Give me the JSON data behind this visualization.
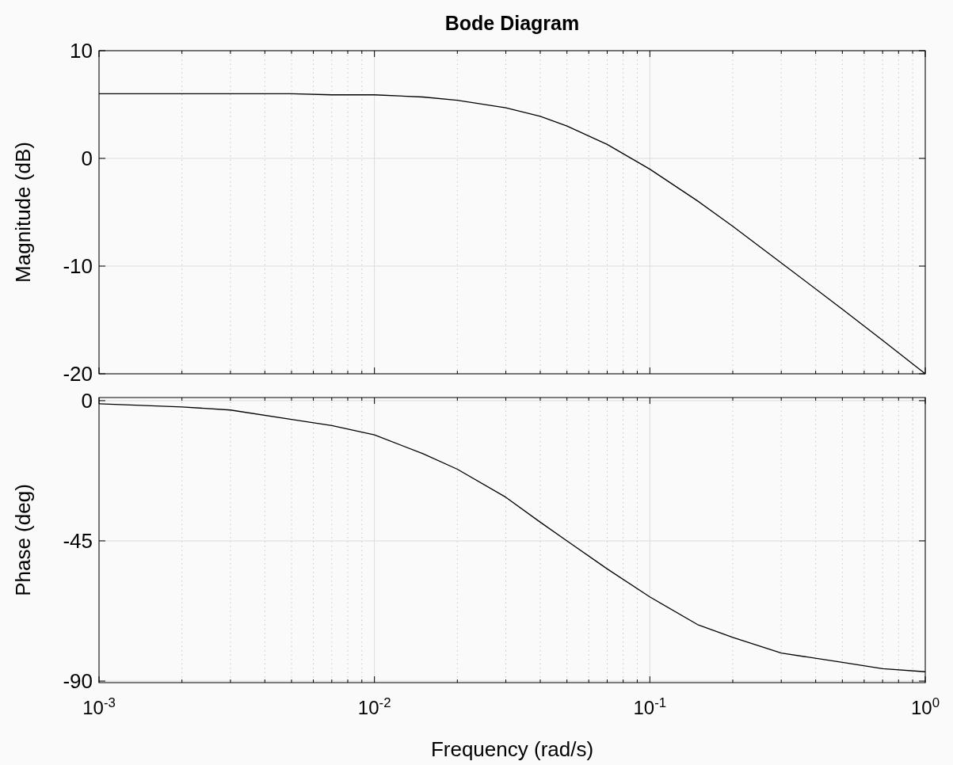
{
  "chart_data": [
    {
      "type": "line",
      "title": "Bode Diagram",
      "ylabel": "Magnitude (dB)",
      "log": "x",
      "grid": true,
      "tick_labels": "y",
      "xlim": [
        0.001,
        1
      ],
      "ylim": [
        -20,
        10
      ],
      "yticks": [
        -20,
        -10,
        0,
        10
      ],
      "xticks": [
        {
          "value": 0.001,
          "label": null
        },
        {
          "value": 0.01,
          "label": null
        },
        {
          "value": 0.1,
          "label": null
        },
        {
          "value": 1,
          "label": null
        }
      ],
      "series": [
        {
          "color": "#000000",
          "x": [
            0.001,
            0.002,
            0.003,
            0.005,
            0.007,
            0.01,
            0.015,
            0.02,
            0.03,
            0.04,
            0.05,
            0.07,
            0.1,
            0.15,
            0.2,
            0.3,
            0.5,
            0.7,
            1
          ],
          "values": [
            6.0,
            6.0,
            6.0,
            6.0,
            5.9,
            5.9,
            5.7,
            5.4,
            4.7,
            3.9,
            3.0,
            1.3,
            -1.0,
            -4.0,
            -6.3,
            -9.7,
            -14.0,
            -16.9,
            -20.0
          ]
        }
      ]
    },
    {
      "type": "line",
      "xlabel": "Frequency  (rad/s)",
      "ylabel": "Phase (deg)",
      "log": "x",
      "grid": true,
      "xlim": [
        0.001,
        1
      ],
      "ylim": [
        -90.5,
        1
      ],
      "yticks": [
        -90,
        -45,
        0
      ],
      "xticks": [
        {
          "value": 0.001,
          "label": "10$^{-3}$"
        },
        {
          "value": 0.01,
          "label": "10$^{-2}$"
        },
        {
          "value": 0.1,
          "label": "10$^{-1}$"
        },
        {
          "value": 1,
          "label": "10$^{0}$"
        }
      ],
      "series": [
        {
          "color": "#000000",
          "x": [
            0.001,
            0.002,
            0.003,
            0.005,
            0.007,
            0.01,
            0.015,
            0.02,
            0.03,
            0.04,
            0.05,
            0.07,
            0.1,
            0.15,
            0.2,
            0.3,
            0.5,
            0.7,
            1
          ],
          "values": [
            -1,
            -2,
            -3,
            -6,
            -8,
            -11,
            -17,
            -22,
            -31,
            -39,
            -45,
            -54,
            -63,
            -72,
            -76,
            -81,
            -84,
            -86,
            -87
          ]
        }
      ]
    }
  ]
}
